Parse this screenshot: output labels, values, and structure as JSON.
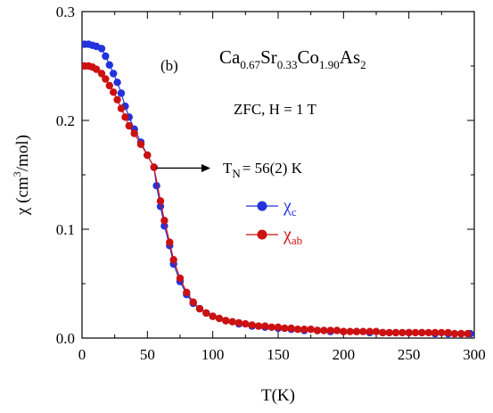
{
  "chart_data": {
    "type": "scatter",
    "panel_label": "(b)",
    "formula": {
      "parts": [
        {
          "t": "Ca",
          "sub": "0.67"
        },
        {
          "t": "Sr",
          "sub": "0.33"
        },
        {
          "t": "Co",
          "sub": "1.90"
        },
        {
          "t": "As",
          "sub": "2"
        }
      ]
    },
    "condition": "ZFC, H = 1 T",
    "transition": {
      "main": "T",
      "sub": "N",
      "rest": "= 56(2) K",
      "x": 55,
      "y": 0.157
    },
    "xlabel": "T(K)",
    "ylabel": "χ (cm³/mol)",
    "ylabel_parts": {
      "pre": "χ (cm",
      "sup": "3",
      "post": "/mol)"
    },
    "xlim": [
      0,
      300
    ],
    "ylim": [
      0,
      0.3
    ],
    "xticks": [
      0,
      50,
      100,
      150,
      200,
      250,
      300
    ],
    "xtick_labels": [
      "0",
      "50",
      "100",
      "150",
      "200",
      "250",
      "300"
    ],
    "yticks": [
      0.0,
      0.1,
      0.2,
      0.3
    ],
    "ytick_labels": [
      "0.0",
      "0.1",
      "0.2",
      "0.3"
    ],
    "legend_position": "center-right",
    "series": [
      {
        "name": "χc",
        "label_main": "χ",
        "label_sub": "c",
        "color": "#2233dd",
        "x": [
          2,
          5,
          8,
          11,
          15,
          18,
          21,
          24,
          27,
          30,
          33,
          36,
          40,
          45,
          50,
          55,
          57,
          60,
          63,
          67,
          70,
          75,
          80,
          85,
          90,
          95,
          100,
          110,
          120,
          130,
          140,
          150,
          160,
          170,
          180,
          190,
          200,
          210,
          220,
          230,
          240,
          250,
          260,
          270,
          280,
          290,
          297
        ],
        "y": [
          0.27,
          0.27,
          0.269,
          0.268,
          0.266,
          0.259,
          0.251,
          0.243,
          0.235,
          0.225,
          0.213,
          0.203,
          0.192,
          0.18,
          0.168,
          0.157,
          0.14,
          0.121,
          0.103,
          0.085,
          0.068,
          0.052,
          0.04,
          0.032,
          0.027,
          0.023,
          0.02,
          0.016,
          0.013,
          0.011,
          0.01,
          0.009,
          0.008,
          0.007,
          0.007,
          0.006,
          0.006,
          0.006,
          0.005,
          0.005,
          0.005,
          0.005,
          0.005,
          0.004,
          0.004,
          0.004,
          0.004
        ]
      },
      {
        "name": "χab",
        "label_main": "χ",
        "label_sub": "ab",
        "color": "#cc1111",
        "x": [
          2,
          5,
          8,
          11,
          15,
          18,
          21,
          24,
          27,
          30,
          33,
          36,
          40,
          45,
          50,
          55,
          60,
          63,
          67,
          70,
          75,
          80,
          85,
          90,
          95,
          100,
          105,
          110,
          115,
          120,
          125,
          130,
          135,
          140,
          145,
          150,
          155,
          160,
          165,
          170,
          175,
          180,
          185,
          190,
          195,
          200,
          205,
          210,
          215,
          220,
          225,
          230,
          235,
          240,
          245,
          250,
          255,
          260,
          265,
          270,
          275,
          280,
          285,
          290,
          295
        ],
        "y": [
          0.25,
          0.25,
          0.249,
          0.247,
          0.243,
          0.238,
          0.232,
          0.226,
          0.219,
          0.211,
          0.203,
          0.195,
          0.188,
          0.178,
          0.168,
          0.157,
          0.126,
          0.108,
          0.088,
          0.072,
          0.055,
          0.042,
          0.033,
          0.027,
          0.023,
          0.02,
          0.018,
          0.016,
          0.015,
          0.014,
          0.013,
          0.012,
          0.011,
          0.011,
          0.01,
          0.01,
          0.009,
          0.009,
          0.008,
          0.008,
          0.008,
          0.007,
          0.007,
          0.007,
          0.007,
          0.006,
          0.006,
          0.006,
          0.006,
          0.006,
          0.006,
          0.005,
          0.005,
          0.005,
          0.005,
          0.005,
          0.005,
          0.005,
          0.005,
          0.005,
          0.005,
          0.005,
          0.004,
          0.004,
          0.004
        ]
      }
    ]
  }
}
